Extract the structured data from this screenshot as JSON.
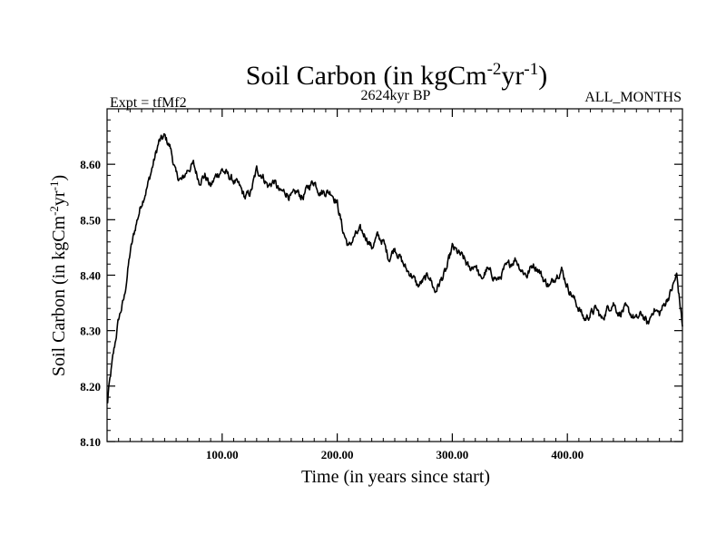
{
  "chart_data": {
    "type": "line",
    "title": {
      "base": "Soil Carbon (in kgCm",
      "sup1": "-2",
      "mid": "yr",
      "sup2": "-1",
      "end": ")"
    },
    "experiment_label": "Expt = tfMf2",
    "period_label": "2624kyr BP",
    "months_label": "ALL_MONTHS",
    "xlabel": "Time (in years since start)",
    "ylabel": {
      "base": "Soil Carbon (in kgCm",
      "sup1": "-2",
      "mid": "yr",
      "sup2": "-1",
      "end": ")"
    },
    "xlim": [
      0,
      500
    ],
    "ylim": [
      8.1,
      8.7
    ],
    "x_ticks": [
      "100.00",
      "200.00",
      "300.00",
      "400.00"
    ],
    "x_tick_values": [
      100,
      200,
      300,
      400
    ],
    "y_ticks": [
      "8.10",
      "8.20",
      "8.30",
      "8.40",
      "8.50",
      "8.60"
    ],
    "y_tick_values": [
      8.1,
      8.2,
      8.3,
      8.4,
      8.5,
      8.6
    ],
    "series": [
      {
        "name": "Soil Carbon",
        "color": "#000000",
        "x": [
          0,
          5,
          10,
          15,
          20,
          25,
          30,
          35,
          40,
          45,
          50,
          55,
          60,
          65,
          70,
          75,
          80,
          85,
          90,
          95,
          100,
          105,
          110,
          115,
          120,
          125,
          130,
          135,
          140,
          145,
          150,
          155,
          160,
          165,
          170,
          175,
          180,
          185,
          190,
          195,
          200,
          205,
          210,
          215,
          220,
          225,
          230,
          235,
          240,
          245,
          250,
          255,
          260,
          265,
          270,
          275,
          280,
          285,
          290,
          295,
          300,
          305,
          310,
          315,
          320,
          325,
          330,
          335,
          340,
          345,
          350,
          355,
          360,
          365,
          370,
          375,
          380,
          385,
          390,
          395,
          400,
          405,
          410,
          415,
          420,
          425,
          430,
          435,
          440,
          445,
          450,
          455,
          460,
          465,
          470,
          475,
          480,
          485,
          490,
          495,
          500
        ],
        "values": [
          8.17,
          8.25,
          8.32,
          8.36,
          8.44,
          8.49,
          8.53,
          8.56,
          8.6,
          8.64,
          8.65,
          8.63,
          8.58,
          8.57,
          8.59,
          8.6,
          8.57,
          8.58,
          8.56,
          8.58,
          8.59,
          8.58,
          8.57,
          8.56,
          8.54,
          8.55,
          8.59,
          8.58,
          8.56,
          8.57,
          8.55,
          8.55,
          8.54,
          8.55,
          8.54,
          8.56,
          8.57,
          8.55,
          8.55,
          8.55,
          8.53,
          8.48,
          8.45,
          8.47,
          8.48,
          8.47,
          8.45,
          8.47,
          8.46,
          8.43,
          8.45,
          8.43,
          8.41,
          8.4,
          8.38,
          8.39,
          8.4,
          8.37,
          8.39,
          8.41,
          8.45,
          8.44,
          8.43,
          8.41,
          8.42,
          8.39,
          8.41,
          8.4,
          8.39,
          8.41,
          8.42,
          8.43,
          8.41,
          8.4,
          8.42,
          8.41,
          8.39,
          8.38,
          8.4,
          8.41,
          8.38,
          8.36,
          8.34,
          8.32,
          8.33,
          8.34,
          8.32,
          8.34,
          8.35,
          8.33,
          8.34,
          8.33,
          8.32,
          8.33,
          8.31,
          8.34,
          8.33,
          8.35,
          8.37,
          8.4,
          8.31
        ]
      }
    ]
  }
}
